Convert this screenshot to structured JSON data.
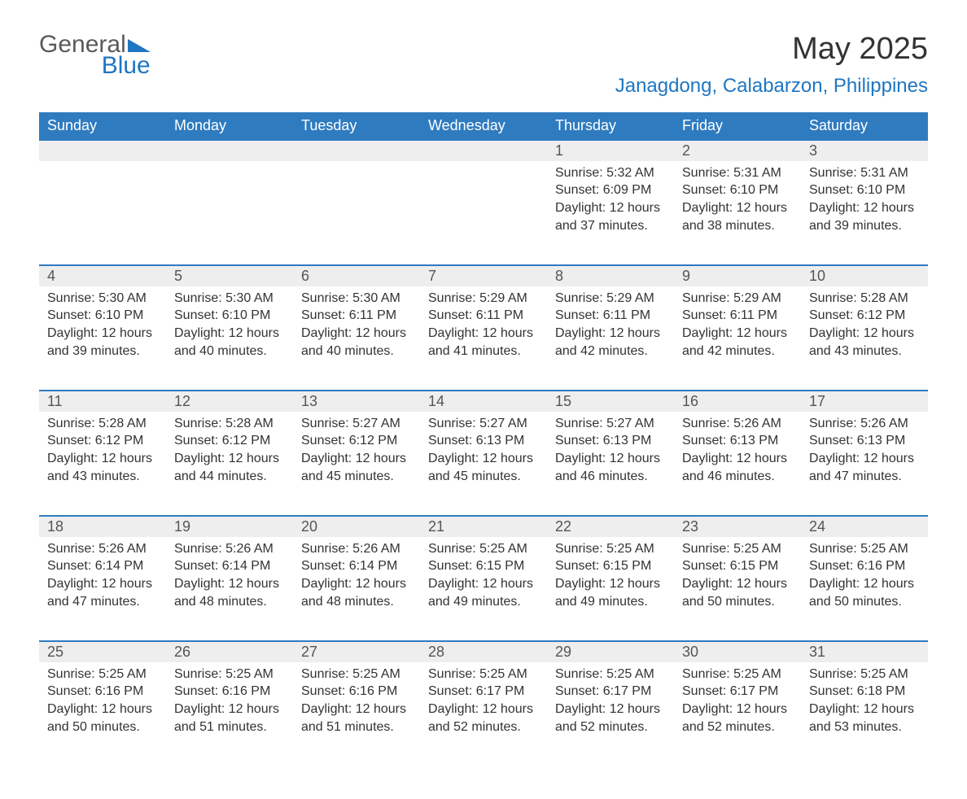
{
  "brand": {
    "word1": "General",
    "word2": "Blue",
    "accent_color": "#1f76c2"
  },
  "title": "May 2025",
  "location": "Janagdong, Calabarzon, Philippines",
  "colors": {
    "header_bg": "#2f7bc0",
    "header_text": "#ffffff",
    "daynum_bg": "#eeeeee",
    "row_border": "#2f7bc0",
    "body_text": "#333333"
  },
  "weekdays": [
    "Sunday",
    "Monday",
    "Tuesday",
    "Wednesday",
    "Thursday",
    "Friday",
    "Saturday"
  ],
  "weeks": [
    [
      null,
      null,
      null,
      null,
      {
        "n": "1",
        "sunrise": "5:32 AM",
        "sunset": "6:09 PM",
        "daylight": "12 hours and 37 minutes."
      },
      {
        "n": "2",
        "sunrise": "5:31 AM",
        "sunset": "6:10 PM",
        "daylight": "12 hours and 38 minutes."
      },
      {
        "n": "3",
        "sunrise": "5:31 AM",
        "sunset": "6:10 PM",
        "daylight": "12 hours and 39 minutes."
      }
    ],
    [
      {
        "n": "4",
        "sunrise": "5:30 AM",
        "sunset": "6:10 PM",
        "daylight": "12 hours and 39 minutes."
      },
      {
        "n": "5",
        "sunrise": "5:30 AM",
        "sunset": "6:10 PM",
        "daylight": "12 hours and 40 minutes."
      },
      {
        "n": "6",
        "sunrise": "5:30 AM",
        "sunset": "6:11 PM",
        "daylight": "12 hours and 40 minutes."
      },
      {
        "n": "7",
        "sunrise": "5:29 AM",
        "sunset": "6:11 PM",
        "daylight": "12 hours and 41 minutes."
      },
      {
        "n": "8",
        "sunrise": "5:29 AM",
        "sunset": "6:11 PM",
        "daylight": "12 hours and 42 minutes."
      },
      {
        "n": "9",
        "sunrise": "5:29 AM",
        "sunset": "6:11 PM",
        "daylight": "12 hours and 42 minutes."
      },
      {
        "n": "10",
        "sunrise": "5:28 AM",
        "sunset": "6:12 PM",
        "daylight": "12 hours and 43 minutes."
      }
    ],
    [
      {
        "n": "11",
        "sunrise": "5:28 AM",
        "sunset": "6:12 PM",
        "daylight": "12 hours and 43 minutes."
      },
      {
        "n": "12",
        "sunrise": "5:28 AM",
        "sunset": "6:12 PM",
        "daylight": "12 hours and 44 minutes."
      },
      {
        "n": "13",
        "sunrise": "5:27 AM",
        "sunset": "6:12 PM",
        "daylight": "12 hours and 45 minutes."
      },
      {
        "n": "14",
        "sunrise": "5:27 AM",
        "sunset": "6:13 PM",
        "daylight": "12 hours and 45 minutes."
      },
      {
        "n": "15",
        "sunrise": "5:27 AM",
        "sunset": "6:13 PM",
        "daylight": "12 hours and 46 minutes."
      },
      {
        "n": "16",
        "sunrise": "5:26 AM",
        "sunset": "6:13 PM",
        "daylight": "12 hours and 46 minutes."
      },
      {
        "n": "17",
        "sunrise": "5:26 AM",
        "sunset": "6:13 PM",
        "daylight": "12 hours and 47 minutes."
      }
    ],
    [
      {
        "n": "18",
        "sunrise": "5:26 AM",
        "sunset": "6:14 PM",
        "daylight": "12 hours and 47 minutes."
      },
      {
        "n": "19",
        "sunrise": "5:26 AM",
        "sunset": "6:14 PM",
        "daylight": "12 hours and 48 minutes."
      },
      {
        "n": "20",
        "sunrise": "5:26 AM",
        "sunset": "6:14 PM",
        "daylight": "12 hours and 48 minutes."
      },
      {
        "n": "21",
        "sunrise": "5:25 AM",
        "sunset": "6:15 PM",
        "daylight": "12 hours and 49 minutes."
      },
      {
        "n": "22",
        "sunrise": "5:25 AM",
        "sunset": "6:15 PM",
        "daylight": "12 hours and 49 minutes."
      },
      {
        "n": "23",
        "sunrise": "5:25 AM",
        "sunset": "6:15 PM",
        "daylight": "12 hours and 50 minutes."
      },
      {
        "n": "24",
        "sunrise": "5:25 AM",
        "sunset": "6:16 PM",
        "daylight": "12 hours and 50 minutes."
      }
    ],
    [
      {
        "n": "25",
        "sunrise": "5:25 AM",
        "sunset": "6:16 PM",
        "daylight": "12 hours and 50 minutes."
      },
      {
        "n": "26",
        "sunrise": "5:25 AM",
        "sunset": "6:16 PM",
        "daylight": "12 hours and 51 minutes."
      },
      {
        "n": "27",
        "sunrise": "5:25 AM",
        "sunset": "6:16 PM",
        "daylight": "12 hours and 51 minutes."
      },
      {
        "n": "28",
        "sunrise": "5:25 AM",
        "sunset": "6:17 PM",
        "daylight": "12 hours and 52 minutes."
      },
      {
        "n": "29",
        "sunrise": "5:25 AM",
        "sunset": "6:17 PM",
        "daylight": "12 hours and 52 minutes."
      },
      {
        "n": "30",
        "sunrise": "5:25 AM",
        "sunset": "6:17 PM",
        "daylight": "12 hours and 52 minutes."
      },
      {
        "n": "31",
        "sunrise": "5:25 AM",
        "sunset": "6:18 PM",
        "daylight": "12 hours and 53 minutes."
      }
    ]
  ],
  "labels": {
    "sunrise": "Sunrise: ",
    "sunset": "Sunset: ",
    "daylight": "Daylight: "
  }
}
